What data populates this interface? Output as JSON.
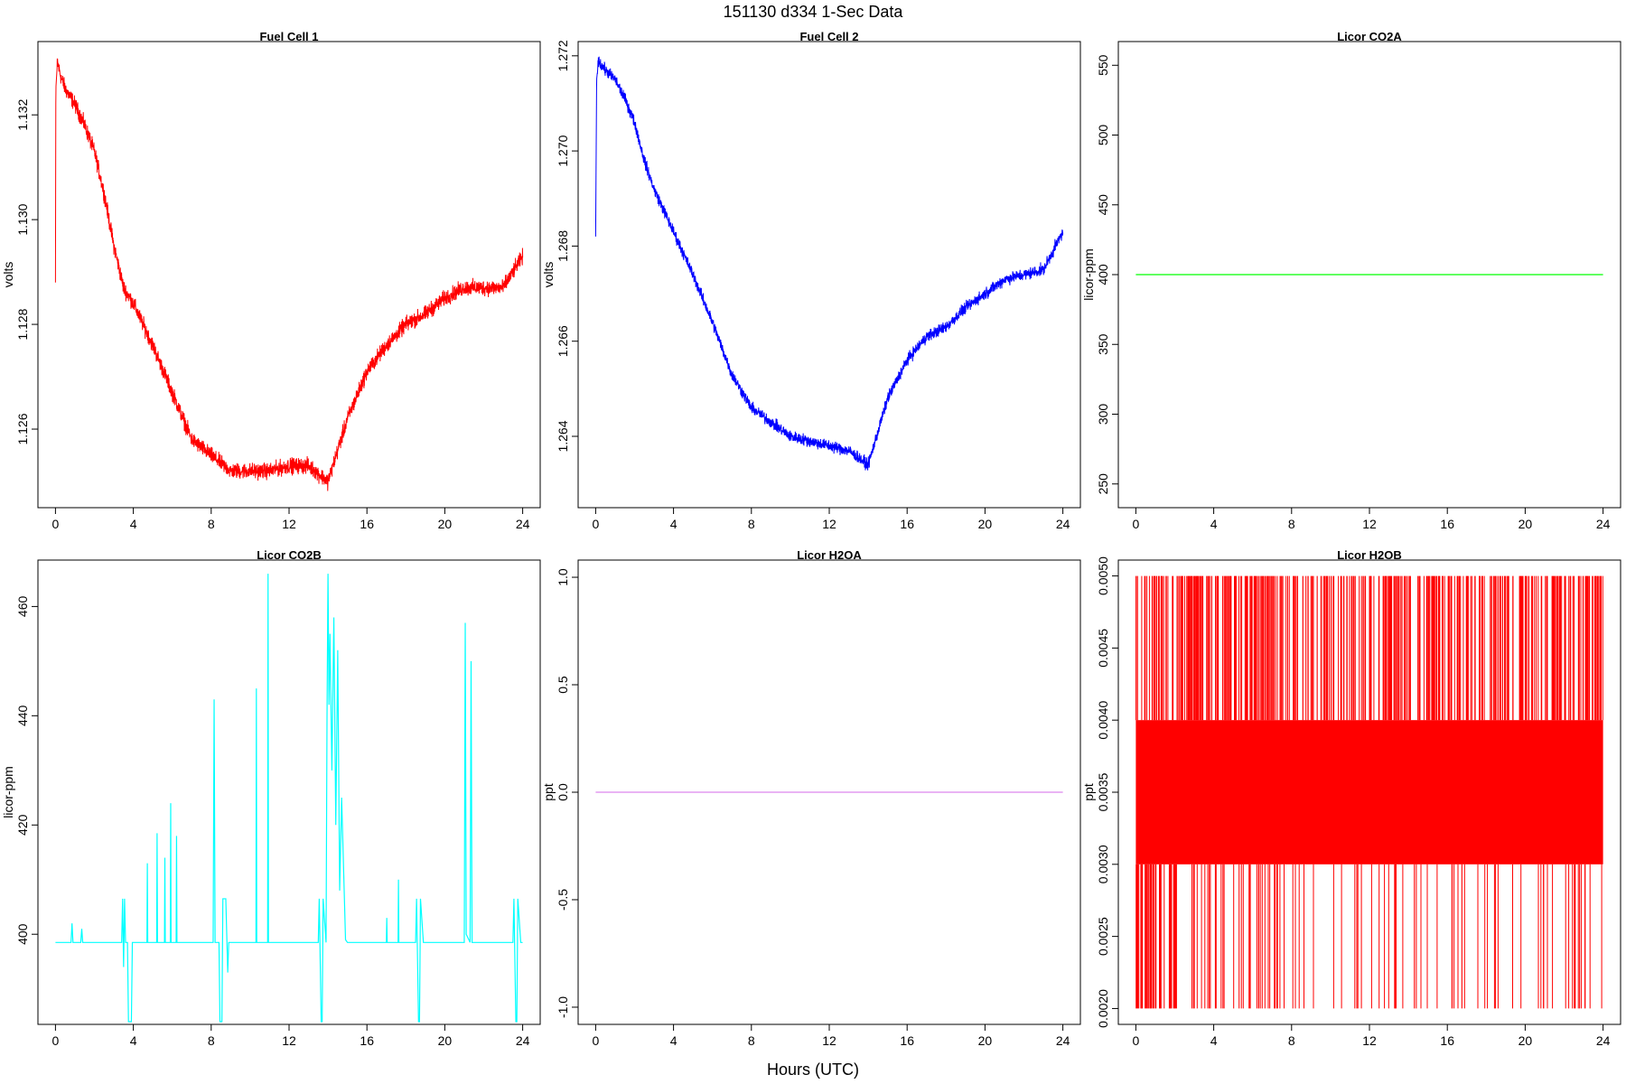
{
  "page": {
    "title": "151130   d334   1-Sec Data",
    "xlabel": "Hours (UTC)"
  },
  "chart_data": [
    {
      "type": "line",
      "title": "Fuel Cell 1",
      "ylabel": "volts",
      "color": "#ff0000",
      "noise": 0.00022,
      "xlim": [
        -0.9,
        24.9
      ],
      "ylim": [
        1.1245,
        1.1334
      ],
      "xticks": [
        0,
        4,
        8,
        12,
        16,
        20,
        24
      ],
      "yticks": [
        1.126,
        1.128,
        1.13,
        1.132
      ],
      "ytick_labels": [
        "1.126",
        "1.128",
        "1.130",
        "1.132"
      ],
      "series": [
        {
          "x": [
            0,
            0.02,
            0.1,
            0.3,
            0.5,
            1,
            1.5,
            2,
            2.5,
            3,
            3.5,
            4,
            5,
            6,
            7,
            8,
            9,
            10,
            11,
            12,
            13,
            14,
            15,
            16,
            17,
            18,
            19,
            20,
            21,
            22,
            23,
            24
          ],
          "y": [
            1.1288,
            1.1325,
            1.133,
            1.1327,
            1.1325,
            1.1322,
            1.1318,
            1.1313,
            1.1305,
            1.1295,
            1.1287,
            1.1284,
            1.1276,
            1.1267,
            1.1258,
            1.1255,
            1.1252,
            1.1252,
            1.1252,
            1.1253,
            1.1253,
            1.125,
            1.1262,
            1.1271,
            1.1276,
            1.128,
            1.1282,
            1.1285,
            1.1287,
            1.1287,
            1.1287,
            1.1293
          ]
        }
      ]
    },
    {
      "type": "line",
      "title": "Fuel Cell 2",
      "ylabel": "volts",
      "color": "#0000ff",
      "noise": 0.00018,
      "xlim": [
        -0.9,
        24.9
      ],
      "ylim": [
        1.2625,
        1.2723
      ],
      "xticks": [
        0,
        4,
        8,
        12,
        16,
        20,
        24
      ],
      "yticks": [
        1.264,
        1.266,
        1.268,
        1.27,
        1.272
      ],
      "ytick_labels": [
        "1.264",
        "1.266",
        "1.268",
        "1.270",
        "1.272"
      ],
      "series": [
        {
          "x": [
            0,
            0.05,
            0.15,
            0.3,
            0.5,
            1,
            1.5,
            2,
            2.5,
            3,
            4,
            5,
            6,
            7,
            8,
            9,
            10,
            11,
            12,
            13,
            14,
            15,
            16,
            17,
            18,
            19,
            20,
            21,
            22,
            23,
            24
          ],
          "y": [
            1.2682,
            1.2715,
            1.2719,
            1.2718,
            1.2717,
            1.2715,
            1.2711,
            1.2706,
            1.2698,
            1.2692,
            1.2683,
            1.2674,
            1.2664,
            1.2653,
            1.2646,
            1.2643,
            1.264,
            1.2639,
            1.2638,
            1.2637,
            1.2634,
            1.2648,
            1.2656,
            1.2661,
            1.2663,
            1.2667,
            1.267,
            1.2673,
            1.2674,
            1.2675,
            1.2683
          ]
        }
      ]
    },
    {
      "type": "line",
      "title": "Licor CO2A",
      "ylabel": "licor-ppm",
      "color": "#00ff00",
      "noise": 0,
      "xlim": [
        -0.9,
        24.9
      ],
      "ylim": [
        233,
        567
      ],
      "xticks": [
        0,
        4,
        8,
        12,
        16,
        20,
        24
      ],
      "yticks": [
        250,
        300,
        350,
        400,
        450,
        500,
        550
      ],
      "ytick_labels": [
        "250",
        "300",
        "350",
        "400",
        "450",
        "500",
        "550"
      ],
      "series": [
        {
          "x": [
            0,
            24
          ],
          "y": [
            400,
            400
          ]
        }
      ]
    },
    {
      "type": "line",
      "title": "Licor CO2B",
      "ylabel": "licor-ppm",
      "color": "#00ffff",
      "noise": 0,
      "xlim": [
        -0.9,
        24.9
      ],
      "ylim": [
        383.5,
        468.5
      ],
      "xticks": [
        0,
        4,
        8,
        12,
        16,
        20,
        24
      ],
      "yticks": [
        400,
        420,
        440,
        460
      ],
      "ytick_labels": [
        "400",
        "420",
        "440",
        "460"
      ],
      "series": [
        {
          "x": [
            0,
            0.8,
            0.85,
            0.9,
            1.3,
            1.35,
            1.4,
            3.4,
            3.45,
            3.5,
            3.55,
            3.6,
            3.7,
            3.75,
            3.9,
            3.95,
            4.7,
            4.72,
            4.74,
            5.2,
            5.22,
            5.24,
            5.6,
            5.62,
            5.64,
            5.9,
            5.92,
            5.94,
            6.2,
            6.22,
            6.24,
            8.1,
            8.15,
            8.2,
            8.4,
            8.45,
            8.55,
            8.6,
            8.75,
            8.85,
            8.9,
            9.05,
            9.1,
            10.3,
            10.32,
            10.34,
            10.9,
            10.92,
            10.94,
            13.5,
            13.55,
            13.65,
            13.7,
            13.75,
            13.9,
            13.95,
            14.0,
            14.05,
            14.1,
            14.2,
            14.3,
            14.4,
            14.5,
            14.6,
            14.7,
            14.9,
            15.0,
            17.0,
            17.02,
            17.04,
            17.6,
            17.62,
            17.64,
            18.5,
            18.55,
            18.65,
            18.7,
            18.75,
            18.9,
            18.95,
            21.0,
            21.05,
            21.1,
            21.3,
            21.35,
            21.4,
            23.5,
            23.55,
            23.65,
            23.7,
            23.75,
            23.9,
            23.95,
            24.0
          ],
          "y": [
            398.5,
            398.5,
            402,
            398.5,
            398.5,
            401,
            398.5,
            398.5,
            406.5,
            394,
            406.5,
            398.5,
            398.5,
            384,
            384,
            398.5,
            398.5,
            413,
            398.5,
            398.5,
            418.5,
            398.5,
            398.5,
            414,
            398.5,
            398.5,
            424,
            398.5,
            398.5,
            418,
            398.5,
            398.5,
            443,
            398.5,
            398.5,
            384,
            384,
            406.5,
            406.5,
            393,
            398.5,
            398.5,
            398.5,
            398.5,
            445,
            398.5,
            398.5,
            466,
            398.5,
            398.5,
            406.5,
            384,
            384,
            406.5,
            398.5,
            440,
            466,
            442,
            455,
            430,
            458,
            420,
            452,
            408,
            425,
            399,
            398.5,
            398.5,
            403,
            398.5,
            398.5,
            410,
            398.5,
            398.5,
            406.5,
            384,
            384,
            406.5,
            398.5,
            398.5,
            398.5,
            457,
            400,
            398.5,
            450,
            398.5,
            398.5,
            406.5,
            384,
            384,
            406.5,
            398.5,
            398.5,
            398.5
          ]
        }
      ]
    },
    {
      "type": "line",
      "title": "Licor H2OA",
      "ylabel": "ppt",
      "color": "#dd88ee",
      "noise": 0,
      "xlim": [
        -0.9,
        24.9
      ],
      "ylim": [
        -1.08,
        1.08
      ],
      "xticks": [
        0,
        4,
        8,
        12,
        16,
        20,
        24
      ],
      "yticks": [
        -1.0,
        -0.5,
        0.0,
        0.5,
        1.0
      ],
      "ytick_labels": [
        "-1.0",
        "-0.5",
        "0.0",
        "0.5",
        "1.0"
      ],
      "series": [
        {
          "x": [
            0,
            24
          ],
          "y": [
            0,
            0
          ]
        }
      ]
    },
    {
      "type": "line",
      "title": "Licor H2OB",
      "ylabel": "ppt",
      "color": "#ff0000",
      "noise": 0,
      "xlim": [
        -0.9,
        24.9
      ],
      "ylim": [
        0.00189,
        0.00511
      ],
      "xticks": [
        0,
        4,
        8,
        12,
        16,
        20,
        24
      ],
      "yticks": [
        0.002,
        0.0025,
        0.003,
        0.0035,
        0.004,
        0.0045,
        0.005
      ],
      "ytick_labels": [
        "0.0020",
        "0.0025",
        "0.0030",
        "0.0035",
        "0.0040",
        "0.0045",
        "0.0050"
      ],
      "levels": [
        0.002,
        0.003,
        0.004,
        0.005
      ],
      "band": [
        0.003,
        0.004
      ],
      "series": [
        {
          "x": [
            0,
            24
          ],
          "y": [
            0.003,
            0.004
          ]
        }
      ]
    }
  ]
}
